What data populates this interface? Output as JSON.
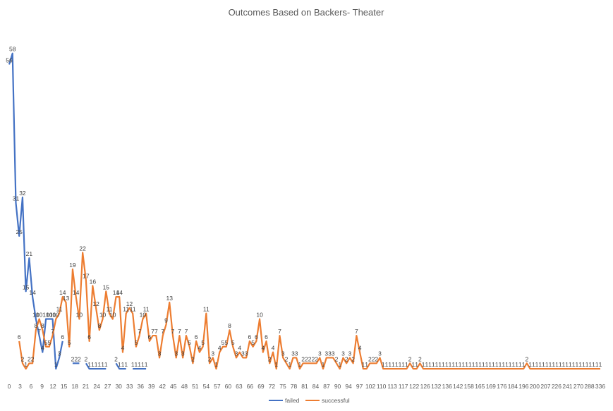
{
  "chart_data": {
    "type": "line",
    "title": "Outcomes Based on Backers- Theater",
    "xlabel": "",
    "ylabel": "",
    "ylim": [
      0,
      60
    ],
    "grid": false,
    "legend_position": "bottom",
    "x_tick_labels": [
      "0",
      "3",
      "6",
      "9",
      "12",
      "15",
      "18",
      "21",
      "24",
      "27",
      "30",
      "33",
      "36",
      "39",
      "42",
      "45",
      "48",
      "51",
      "54",
      "57",
      "60",
      "63",
      "66",
      "69",
      "72",
      "75",
      "78",
      "81",
      "84",
      "87",
      "90",
      "94",
      "97",
      "102",
      "110",
      "113",
      "117",
      "122",
      "126",
      "132",
      "136",
      "142",
      "158",
      "165",
      "169",
      "176",
      "184",
      "196",
      "200",
      "207",
      "226",
      "241",
      "270",
      "288",
      "336"
    ],
    "series": [
      {
        "name": "failed",
        "color": "#4472C4",
        "values": [
          56,
          58,
          31,
          25,
          32,
          15,
          21,
          14,
          10,
          7,
          4,
          10,
          10,
          10,
          1,
          3,
          6,
          null,
          null,
          2,
          2,
          2,
          null,
          2,
          1,
          1,
          1,
          1,
          1,
          1,
          null,
          null,
          2,
          1,
          1,
          1,
          null,
          1,
          1,
          1,
          1,
          1
        ]
      },
      {
        "name": "successful",
        "color": "#ED7D31",
        "values": [
          null,
          null,
          null,
          6,
          2,
          1,
          2,
          2,
          8,
          10,
          8,
          5,
          5,
          7,
          10,
          11,
          14,
          13,
          5,
          19,
          14,
          10,
          22,
          17,
          6,
          16,
          12,
          8,
          10,
          15,
          11,
          10,
          14,
          14,
          4,
          11,
          12,
          11,
          5,
          7,
          10,
          11,
          6,
          7,
          7,
          3,
          7,
          9,
          13,
          7,
          3,
          7,
          3,
          7,
          5,
          2,
          6,
          4,
          5,
          11,
          2,
          3,
          1,
          4,
          5,
          5,
          8,
          5,
          3,
          4,
          3,
          3,
          6,
          5,
          6,
          10,
          4,
          6,
          2,
          4,
          1,
          7,
          3,
          2,
          1,
          3,
          3,
          1,
          2,
          2,
          2,
          2,
          2,
          3,
          1,
          3,
          3,
          3,
          2,
          1,
          3,
          2,
          3,
          2,
          7,
          4,
          1,
          1,
          2,
          2,
          2,
          3,
          1,
          1,
          1,
          1,
          1,
          1,
          1,
          1,
          2,
          1,
          1,
          2,
          1,
          1,
          1,
          1,
          1,
          1,
          1,
          1,
          1,
          1,
          1,
          1,
          1,
          1,
          1,
          1,
          1,
          1,
          1,
          1,
          1,
          1,
          1,
          1,
          1,
          1,
          1,
          1,
          1,
          1,
          1,
          2,
          1,
          1,
          1,
          1,
          1,
          1,
          1,
          1,
          1,
          1,
          1,
          1,
          1,
          1,
          1,
          1,
          1,
          1,
          1,
          1,
          1,
          1
        ]
      }
    ]
  }
}
